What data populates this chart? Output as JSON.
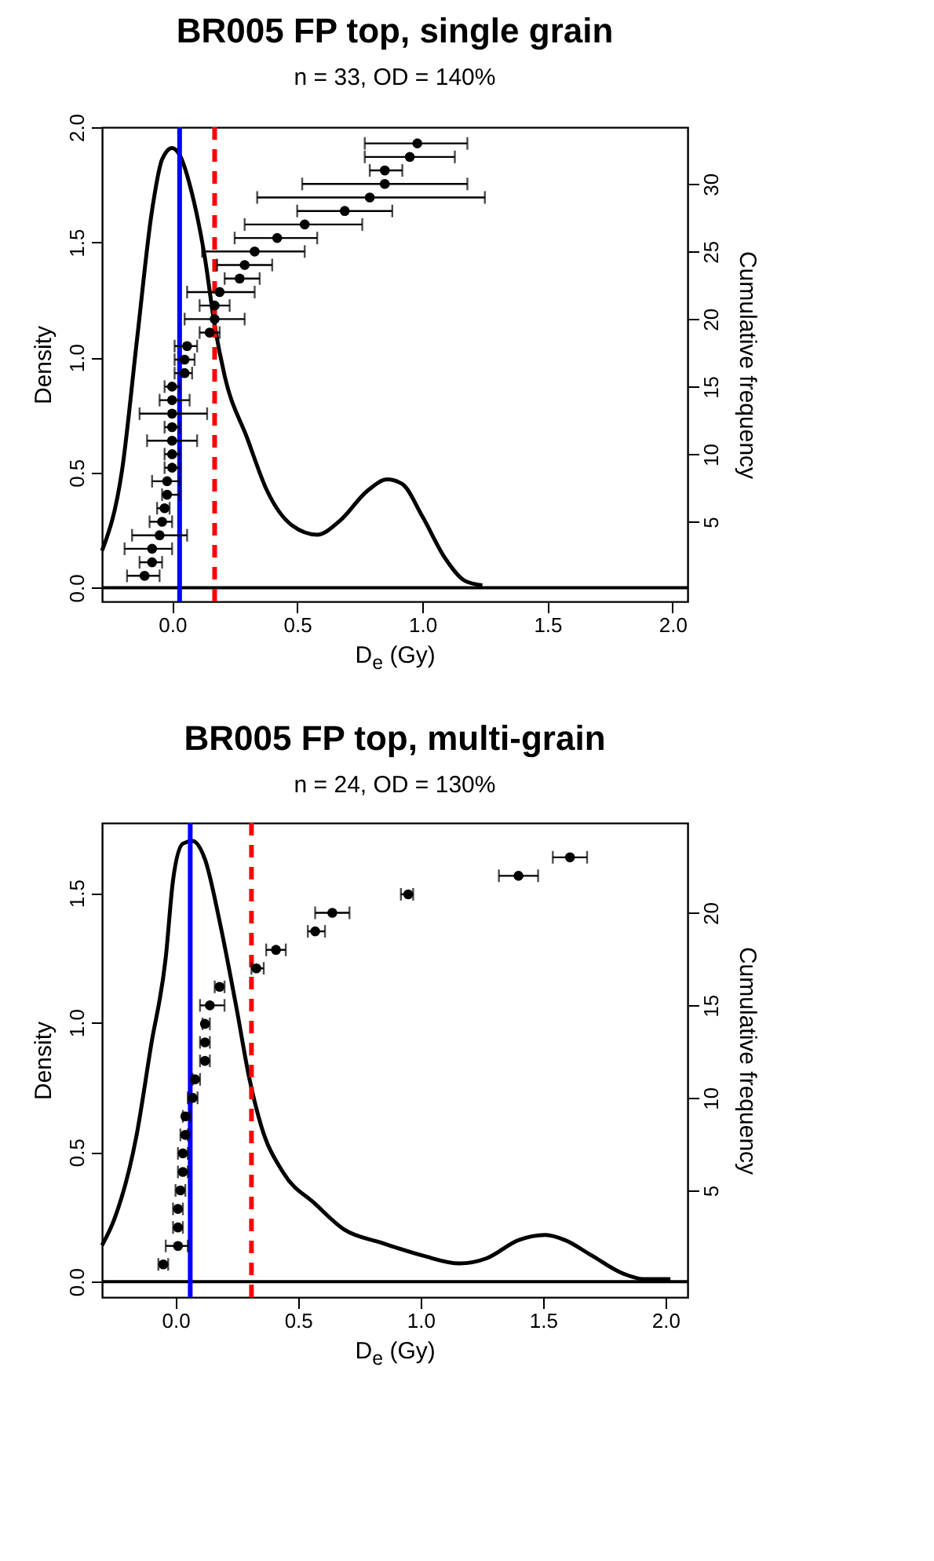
{
  "chart_data": [
    {
      "type": "line",
      "title": "BR005 FP top, single grain",
      "subtitle": "n = 33, OD = 140%",
      "xlabel": "D$_{e}$ (Gy)",
      "ylabel": "Density",
      "y2label": "Cumulative frequency",
      "xlim": [
        -0.28,
        2.06
      ],
      "xticks": [
        {
          "value": 0,
          "label": "0.0"
        },
        {
          "value": 0.5,
          "label": "0.5"
        },
        {
          "value": 1,
          "label": "1.0"
        },
        {
          "value": 1.5,
          "label": "1.5"
        },
        {
          "value": 2,
          "label": "2.0"
        }
      ],
      "ylim": [
        -0.06,
        2.0
      ],
      "yticks": [
        {
          "value": 0,
          "label": "0.0"
        },
        {
          "value": 0.5,
          "label": "0.5"
        },
        {
          "value": 1,
          "label": "1.0"
        },
        {
          "value": 1.5,
          "label": "1.5"
        },
        {
          "value": 2,
          "label": "2.0"
        }
      ],
      "y2lim": [
        -0.9,
        34.2
      ],
      "y2ticks": [
        5,
        10,
        15,
        20,
        25,
        30
      ],
      "grid": false,
      "series": [
        {
          "color": "#000000",
          "x": [
            -0.28,
            -0.2,
            -0.14,
            -0.08,
            -0.04,
            0.0,
            0.03,
            0.08,
            0.13,
            0.17,
            0.21,
            0.3,
            0.38,
            0.48,
            0.58,
            0.67,
            0.78,
            0.86,
            0.92,
            1.0,
            1.09,
            1.17,
            1.24
          ],
          "values": [
            0.16,
            0.51,
            1.08,
            1.64,
            1.86,
            1.91,
            1.88,
            1.71,
            1.44,
            1.14,
            0.92,
            0.65,
            0.42,
            0.27,
            0.23,
            0.29,
            0.42,
            0.47,
            0.45,
            0.31,
            0.13,
            0.03,
            0.01
          ]
        },
        {
          "type": "scatter",
          "axis": "y2",
          "marker": "circle",
          "color": "#000000",
          "x": [
            -0.11,
            -0.08,
            -0.08,
            -0.05,
            -0.04,
            -0.03,
            -0.02,
            -0.02,
            0.0,
            0.0,
            0.0,
            0.0,
            0.0,
            0.0,
            0.0,
            0.05,
            0.05,
            0.06,
            0.15,
            0.17,
            0.17,
            0.19,
            0.27,
            0.29,
            0.33,
            0.42,
            0.53,
            0.69,
            0.79,
            0.85,
            0.85,
            0.95,
            0.98
          ],
          "values": [
            1,
            2,
            3,
            4,
            5,
            6,
            7,
            8,
            9,
            10,
            11,
            12,
            13,
            14,
            15,
            16,
            17,
            18,
            19,
            20,
            21,
            22,
            23,
            24,
            25,
            26,
            27,
            28,
            29,
            30,
            31,
            32,
            33
          ],
          "xerrors": [
            [
              -0.18,
              -0.05
            ],
            [
              -0.13,
              -0.04
            ],
            [
              -0.19,
              0.0
            ],
            [
              -0.16,
              0.06
            ],
            [
              -0.09,
              0.0
            ],
            [
              -0.06,
              -0.01
            ],
            [
              -0.04,
              0.03
            ],
            [
              -0.08,
              0.03
            ],
            [
              -0.03,
              0.03
            ],
            [
              -0.03,
              0.03
            ],
            [
              -0.1,
              0.1
            ],
            [
              -0.03,
              0.03
            ],
            [
              -0.13,
              0.14
            ],
            [
              -0.05,
              0.07
            ],
            [
              -0.03,
              0.03
            ],
            [
              0.01,
              0.08
            ],
            [
              0.01,
              0.09
            ],
            [
              0.01,
              0.1
            ],
            [
              0.11,
              0.19
            ],
            [
              0.05,
              0.29
            ],
            [
              0.11,
              0.23
            ],
            [
              0.06,
              0.33
            ],
            [
              0.21,
              0.35
            ],
            [
              0.18,
              0.4
            ],
            [
              0.12,
              0.53
            ],
            [
              0.25,
              0.58
            ],
            [
              0.29,
              0.76
            ],
            [
              0.5,
              0.88
            ],
            [
              0.34,
              1.25
            ],
            [
              0.52,
              1.18
            ],
            [
              0.79,
              0.92
            ],
            [
              0.77,
              1.13
            ],
            [
              0.77,
              1.18
            ]
          ]
        }
      ],
      "ref_lines": [
        {
          "axis": "y",
          "value": 0,
          "color": "#000000",
          "line_style": "solid"
        },
        {
          "axis": "x",
          "value": 0.03,
          "color": "#0000ff",
          "line_style": "solid"
        },
        {
          "axis": "x",
          "value": 0.17,
          "color": "#ff0000",
          "line_style": "dashed"
        }
      ]
    },
    {
      "type": "line",
      "title": "BR005 FP top, multi-grain",
      "subtitle": "n = 24, OD = 130%",
      "xlabel": "D$_{e}$ (Gy)",
      "ylabel": "Density",
      "y2label": "Cumulative frequency",
      "xlim": [
        -0.3,
        2.09
      ],
      "xticks": [
        {
          "value": 0,
          "label": "0.0"
        },
        {
          "value": 0.5,
          "label": "0.5"
        },
        {
          "value": 1,
          "label": "1.0"
        },
        {
          "value": 1.5,
          "label": "1.5"
        },
        {
          "value": 2,
          "label": "2.0"
        }
      ],
      "ylim": [
        -0.06,
        1.77
      ],
      "yticks": [
        {
          "value": 0,
          "label": "0.0"
        },
        {
          "value": 0.5,
          "label": "0.5"
        },
        {
          "value": 1,
          "label": "1.0"
        },
        {
          "value": 1.5,
          "label": "1.5"
        }
      ],
      "y2lim": [
        -0.77,
        24.86
      ],
      "y2ticks": [
        5,
        10,
        15,
        20
      ],
      "grid": false,
      "series": [
        {
          "color": "#000000",
          "x": [
            -0.3,
            -0.25,
            -0.16,
            -0.1,
            -0.04,
            -0.01,
            0.03,
            0.07,
            0.12,
            0.18,
            0.25,
            0.3,
            0.35,
            0.44,
            0.57,
            0.69,
            0.84,
            1.01,
            1.16,
            1.27,
            1.4,
            1.51,
            1.59,
            1.7,
            1.83,
            1.91,
            2.02
          ],
          "values": [
            0.14,
            0.24,
            0.56,
            0.91,
            1.25,
            1.55,
            1.69,
            1.7,
            1.63,
            1.39,
            1.05,
            0.79,
            0.6,
            0.42,
            0.3,
            0.2,
            0.15,
            0.1,
            0.07,
            0.09,
            0.16,
            0.18,
            0.16,
            0.1,
            0.03,
            0.01,
            0.01
          ]
        },
        {
          "type": "scatter",
          "axis": "y2",
          "marker": "circle",
          "color": "#000000",
          "x": [
            -0.05,
            0.01,
            0.01,
            0.01,
            0.02,
            0.03,
            0.03,
            0.04,
            0.04,
            0.07,
            0.08,
            0.12,
            0.12,
            0.12,
            0.14,
            0.18,
            0.33,
            0.41,
            0.57,
            0.64,
            0.95,
            1.4,
            1.61
          ],
          "values": [
            1,
            2,
            3,
            4,
            5,
            6,
            7,
            8,
            9,
            10,
            11,
            12,
            13,
            14,
            15,
            16,
            17,
            18,
            19,
            20,
            21,
            22,
            23
          ],
          "xerrors": [
            [
              -0.07,
              -0.03
            ],
            [
              -0.04,
              0.05
            ],
            [
              -0.01,
              0.03
            ],
            [
              -0.01,
              0.03
            ],
            [
              0.0,
              0.04
            ],
            [
              0.01,
              0.05
            ],
            [
              0.01,
              0.05
            ],
            [
              0.02,
              0.05
            ],
            [
              0.03,
              0.06
            ],
            [
              0.05,
              0.09
            ],
            [
              0.07,
              0.1
            ],
            [
              0.1,
              0.14
            ],
            [
              0.1,
              0.14
            ],
            [
              0.11,
              0.14
            ],
            [
              0.1,
              0.2
            ],
            [
              0.16,
              0.2
            ],
            [
              0.31,
              0.36
            ],
            [
              0.37,
              0.45
            ],
            [
              0.54,
              0.61
            ],
            [
              0.57,
              0.71
            ],
            [
              0.92,
              0.97
            ],
            [
              1.32,
              1.48
            ],
            [
              1.54,
              1.68
            ]
          ]
        }
      ],
      "ref_lines": [
        {
          "axis": "y",
          "value": 0,
          "color": "#000000",
          "line_style": "solid"
        },
        {
          "axis": "x",
          "value": 0.06,
          "color": "#0000ff",
          "line_style": "solid"
        },
        {
          "axis": "x",
          "value": 0.31,
          "color": "#ff0000",
          "line_style": "dashed"
        }
      ]
    }
  ]
}
